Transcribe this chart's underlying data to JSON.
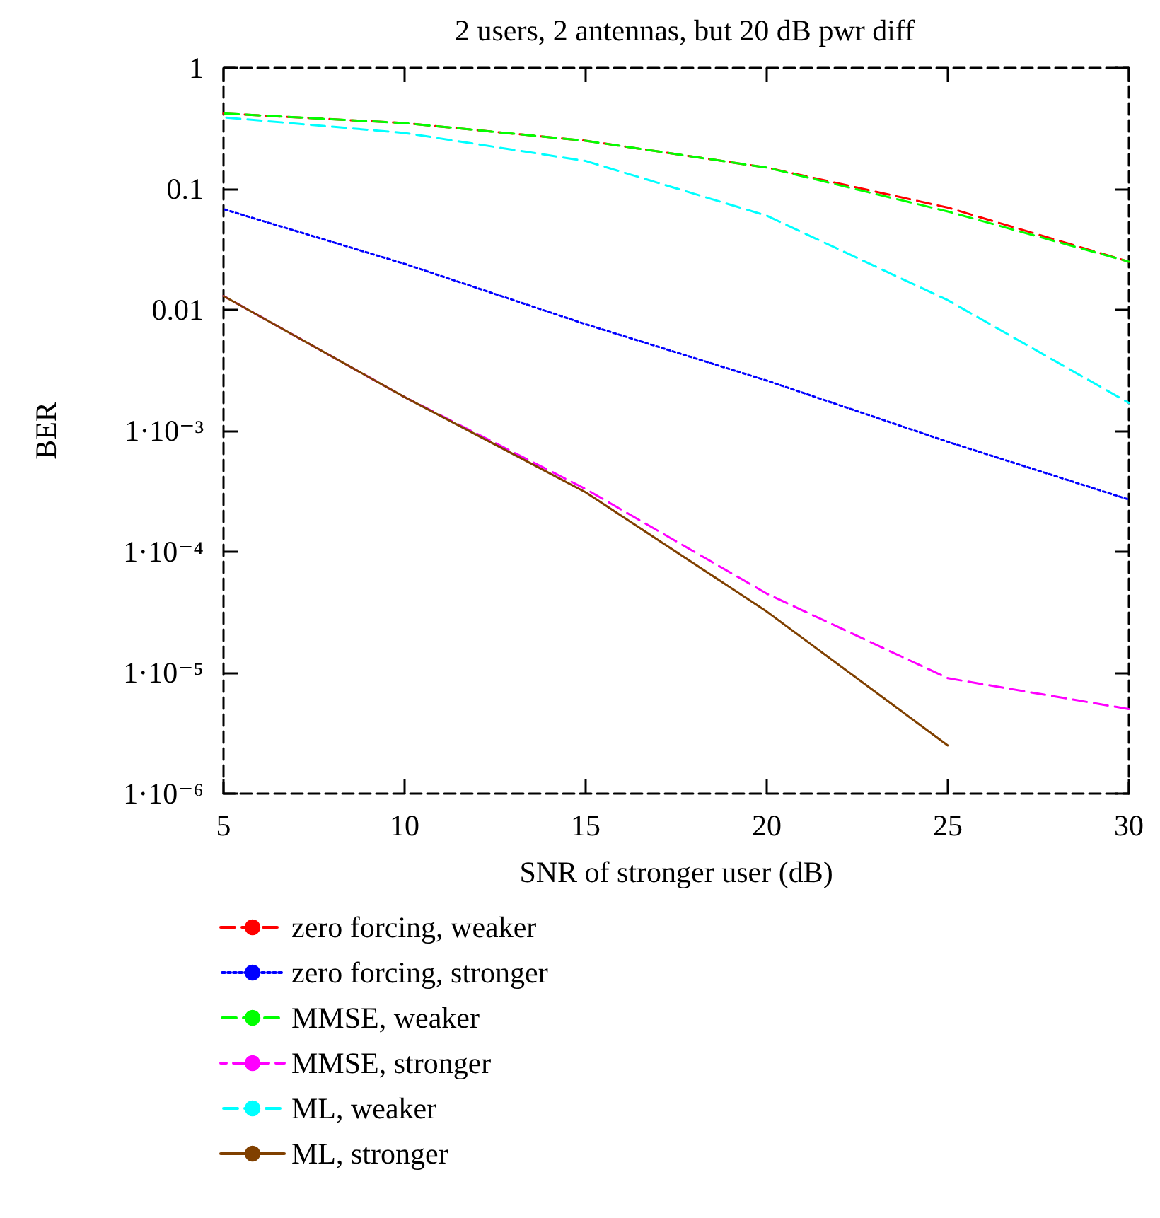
{
  "chart_data": {
    "type": "line",
    "title": "2 users, 2 antennas, but 20 dB pwr diff",
    "xlabel": "SNR of stronger user (dB)",
    "ylabel": "BER",
    "x": [
      5,
      10,
      15,
      20,
      25,
      30
    ],
    "series": [
      {
        "name": "zero forcing, weaker",
        "color": "#ff0000",
        "line_style": "dashed",
        "values": [
          0.42,
          0.35,
          0.25,
          0.15,
          0.07,
          0.025
        ]
      },
      {
        "name": "zero forcing, stronger",
        "color": "#0000ff",
        "line_style": "dotted",
        "values": [
          0.068,
          0.024,
          0.0076,
          0.0026,
          0.00081,
          0.00027
        ]
      },
      {
        "name": "MMSE, weaker",
        "color": "#00ff00",
        "line_style": "dashed",
        "values": [
          0.42,
          0.35,
          0.25,
          0.15,
          0.065,
          0.025
        ]
      },
      {
        "name": "MMSE, stronger",
        "color": "#ff00ff",
        "line_style": "dashed",
        "values": [
          0.013,
          0.0019,
          0.00033,
          4.5e-05,
          9e-06,
          5e-06
        ]
      },
      {
        "name": "ML, weaker",
        "color": "#00ffff",
        "line_style": "dashed",
        "values": [
          0.39,
          0.29,
          0.17,
          0.06,
          0.012,
          0.0017
        ]
      },
      {
        "name": "ML, stronger",
        "color": "#804000",
        "line_style": "solid",
        "values": [
          0.013,
          0.0019,
          0.00031,
          3.2e-05,
          2.5e-06,
          null
        ]
      }
    ],
    "xlim": [
      5,
      30
    ],
    "xticks": [
      5,
      10,
      15,
      20,
      25,
      30
    ],
    "ylim": [
      1e-06,
      1
    ],
    "log": "y",
    "yticks": [
      {
        "value": 1e-06,
        "label": "1·10⁻⁶"
      },
      {
        "value": 1e-05,
        "label": "1·10⁻⁵"
      },
      {
        "value": 0.0001,
        "label": "1·10⁻⁴"
      },
      {
        "value": 0.001,
        "label": "1·10⁻³"
      },
      0.01,
      0.1,
      1
    ],
    "grid": false,
    "legend": "bottom",
    "marker": "none"
  }
}
